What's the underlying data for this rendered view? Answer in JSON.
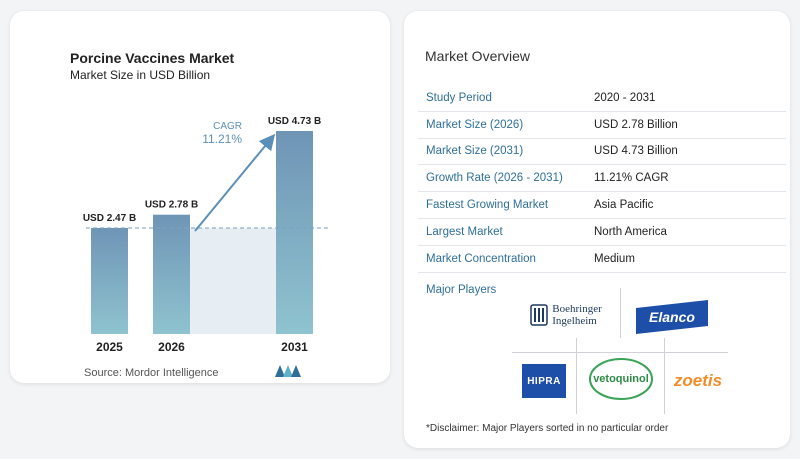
{
  "chart_data": {
    "type": "bar",
    "title": "Porcine Vaccines Market",
    "subtitle": "Market Size in USD Billion",
    "categories": [
      "2025",
      "2026",
      "2031"
    ],
    "values": [
      2.47,
      2.78,
      4.73
    ],
    "value_labels": [
      "USD 2.47 B",
      "USD 2.78 B",
      "USD 4.73 B"
    ],
    "cagr_label": "CAGR",
    "cagr_value": "11.21%",
    "source": "Source:  Mordor Intelligence",
    "colors": {
      "bar_top": "#6f95b6",
      "bar_bottom": "#8fc3cf",
      "shade": "#e6edf3",
      "dash": "#7ea0c0",
      "arrow": "#5a8fb8"
    }
  },
  "overview": {
    "title": "Market Overview",
    "rows": [
      {
        "key": "Study Period",
        "value": "2020 - 2031"
      },
      {
        "key": "Market Size (2026)",
        "value": "USD 2.78 Billion"
      },
      {
        "key": "Market Size (2031)",
        "value": "USD 4.73 Billion"
      },
      {
        "key": "Growth Rate (2026 - 2031)",
        "value": "11.21% CAGR"
      },
      {
        "key": "Fastest Growing Market",
        "value": "Asia Pacific"
      },
      {
        "key": "Largest Market",
        "value": "North America"
      },
      {
        "key": "Market Concentration",
        "value": "Medium"
      }
    ]
  },
  "players": {
    "title": "Major Players",
    "logos": {
      "boehringer_line1": "Boehringer",
      "boehringer_line2": "Ingelheim",
      "elanco": "Elanco",
      "hipra": "HIPRA",
      "vetoquinol": "vetoquinol",
      "zoetis": "zoetis"
    }
  },
  "disclaimer": "*Disclaimer: Major Players sorted in no particular order"
}
